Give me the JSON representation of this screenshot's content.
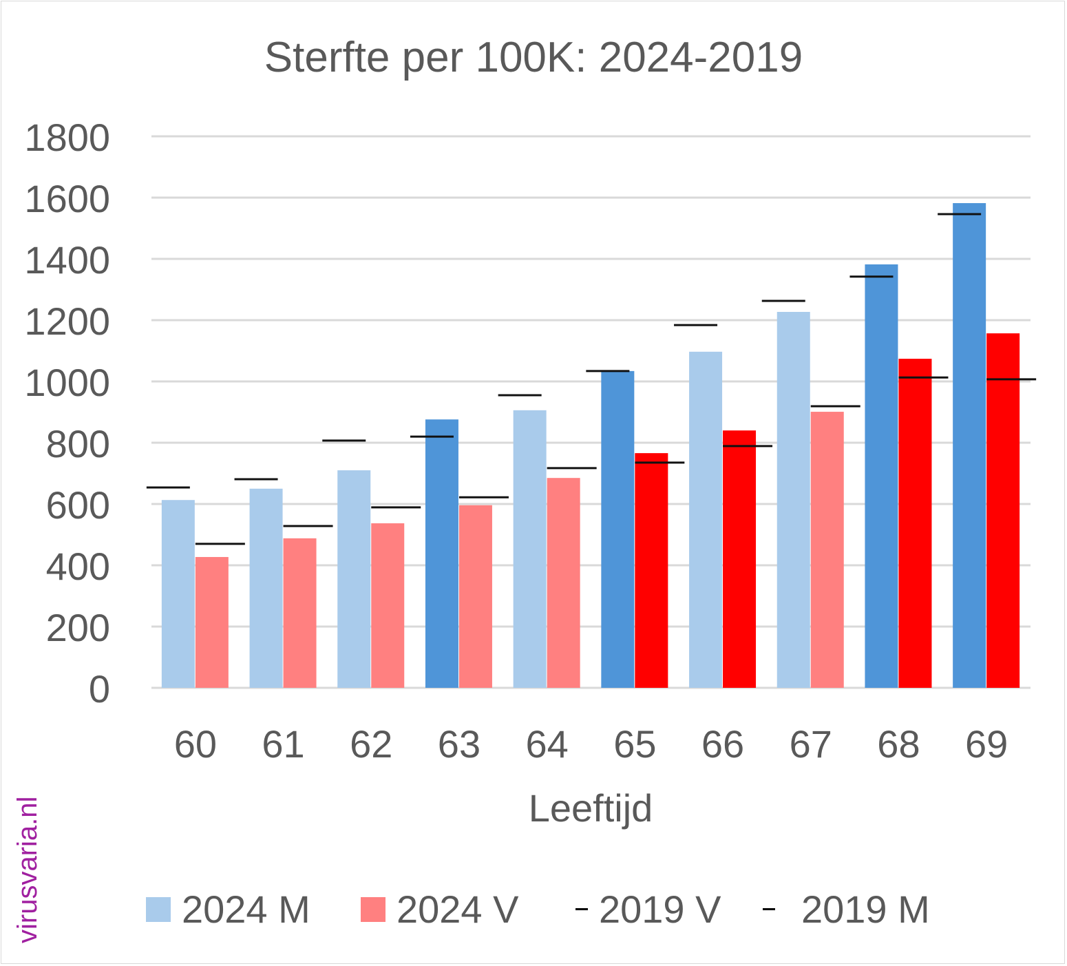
{
  "chart_data": {
    "type": "bar",
    "title": "Sterfte per 100K: 2024-2019",
    "xlabel": "Leeftijd",
    "ylabel": "",
    "ylim": [
      0,
      1800
    ],
    "yticks": [
      0,
      200,
      400,
      600,
      800,
      1000,
      1200,
      1400,
      1600,
      1800
    ],
    "grid": true,
    "legend_position": "bottom",
    "categories": [
      "60",
      "61",
      "62",
      "63",
      "64",
      "65",
      "66",
      "67",
      "68",
      "69"
    ],
    "series": [
      {
        "name": "2024 M",
        "type": "bar",
        "color": "#a9cbeb",
        "highlight_color": "#4f95d8",
        "values": [
          613,
          650,
          710,
          876,
          906,
          1034,
          1097,
          1227,
          1382,
          1582
        ],
        "highlighted": [
          false,
          false,
          false,
          true,
          false,
          true,
          false,
          false,
          true,
          true
        ]
      },
      {
        "name": "2024 V",
        "type": "bar",
        "color": "#ff8080",
        "highlight_color": "#ff0000",
        "values": [
          427,
          488,
          537,
          596,
          685,
          766,
          840,
          901,
          1074,
          1157
        ],
        "highlighted": [
          false,
          false,
          false,
          false,
          false,
          true,
          true,
          false,
          true,
          true
        ]
      },
      {
        "name": "2019 V",
        "type": "marker",
        "color": "#000000",
        "values": [
          470,
          528,
          589,
          622,
          717,
          735,
          789,
          919,
          1013,
          1007
        ]
      },
      {
        "name": "2019 M",
        "type": "marker",
        "color": "#000000",
        "values": [
          654,
          681,
          807,
          820,
          955,
          1034,
          1184,
          1263,
          1342,
          1546
        ]
      }
    ]
  },
  "watermark": "virusvaria.nl"
}
